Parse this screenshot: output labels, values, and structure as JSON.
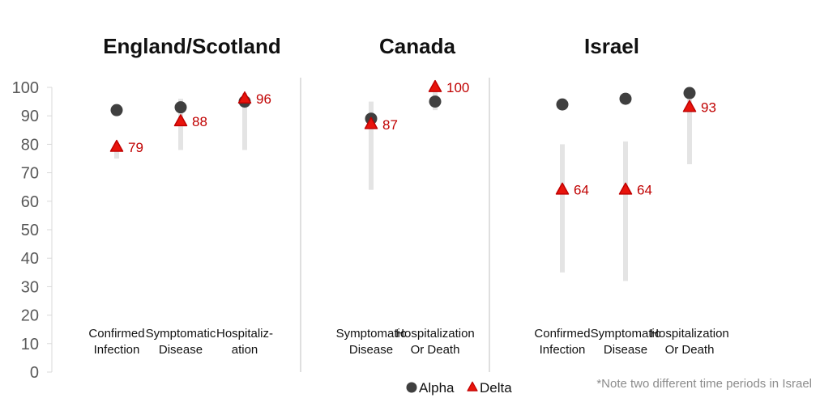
{
  "chart_data": {
    "type": "scatter",
    "ylim": [
      0,
      100
    ],
    "yticks": [
      "0",
      "10",
      "20",
      "30",
      "40",
      "50",
      "60",
      "70",
      "80",
      "90",
      "100"
    ],
    "colors": {
      "alpha": "#3f3f3f",
      "delta": "#e8140c",
      "delta_outline": "#c00000",
      "ci": "#e4e4e4",
      "label": "#c00000"
    },
    "legend": {
      "placement": "bottom",
      "items": [
        {
          "name": "Alpha",
          "marker": "circle"
        },
        {
          "name": "Delta",
          "marker": "triangle"
        }
      ]
    },
    "note": "*Note two different time periods in Israel",
    "panels": [
      {
        "title": "England/Scotland",
        "categories": [
          {
            "label": [
              "Confirmed",
              "Infection"
            ],
            "alpha": 92,
            "delta": 79,
            "delta_label": "79",
            "ci_delta": [
              75,
              80
            ]
          },
          {
            "label": [
              "Symptomatic",
              "Disease"
            ],
            "alpha": 93,
            "delta": 88,
            "delta_label": "88",
            "ci_delta": [
              78,
              96
            ]
          },
          {
            "label": [
              "Hospitaliz-",
              "ation"
            ],
            "alpha": 95,
            "delta": 96,
            "delta_label": "96",
            "ci_delta": [
              78,
              98
            ]
          }
        ]
      },
      {
        "title": "Canada",
        "categories": [
          {
            "label": [
              "Symptomatic",
              "Disease"
            ],
            "alpha": 89,
            "delta": 87,
            "delta_label": "87",
            "ci_delta": [
              64,
              95
            ]
          },
          {
            "label": [
              "Hospitalization",
              "Or Death"
            ],
            "alpha": 95,
            "delta": 100,
            "delta_label": "100",
            "ci_delta": [
              92,
              100
            ]
          }
        ]
      },
      {
        "title": "Israel",
        "categories": [
          {
            "label": [
              "Confirmed",
              "Infection"
            ],
            "alpha": 94,
            "delta": 64,
            "delta_label": "64",
            "ci_delta": [
              35,
              80
            ]
          },
          {
            "label": [
              "Symptomatic",
              "Disease"
            ],
            "alpha": 96,
            "delta": 64,
            "delta_label": "64",
            "ci_delta": [
              32,
              81
            ]
          },
          {
            "label": [
              "Hospitalization",
              "Or Death"
            ],
            "alpha": 98,
            "delta": 93,
            "delta_label": "93",
            "ci_delta": [
              73,
              96
            ]
          }
        ]
      }
    ]
  }
}
